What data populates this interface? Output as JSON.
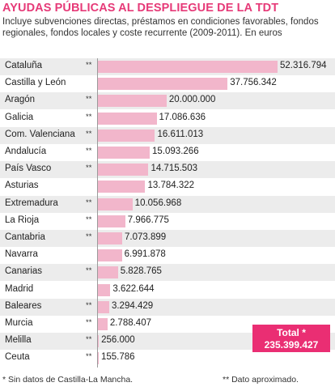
{
  "title": "AYUDAS PÚBLICAS AL DESPLIEGUE DE LA TDT",
  "subtitle": "Incluye subvenciones directas, préstamos en condiciones favorables, fondos regionales, fondos locales y coste recurrente (2009-2011). En euros",
  "colors": {
    "accent": "#e63a78",
    "bar": "#f2b6cb",
    "total_box": "#ea2e73",
    "row_shade": "#ececec"
  },
  "total": {
    "label": "Total *",
    "value": "235.399.427"
  },
  "footnotes": {
    "no_data": "* Sin datos de Castilla-La Mancha.",
    "approx": "** Dato aproximado."
  },
  "chart_data": {
    "type": "bar",
    "orientation": "horizontal",
    "title": "AYUDAS PÚBLICAS AL DESPLIEGUE DE LA TDT",
    "xlabel": "",
    "ylabel": "",
    "xlim": [
      0,
      52316794
    ],
    "grid": false,
    "legend": "none",
    "categories": [
      "Cataluña",
      "Castilla y León",
      "Aragón",
      "Galicia",
      "Com. Valenciana",
      "Andalucía",
      "País Vasco",
      "Asturias",
      "Extremadura",
      "La Rioja",
      "Cantabria",
      "Navarra",
      "Canarias",
      "Madrid",
      "Baleares",
      "Murcia",
      "Melilla",
      "Ceuta"
    ],
    "values": [
      52316794,
      37756342,
      20000000,
      17086636,
      16611013,
      15093266,
      14715503,
      13784322,
      10056968,
      7966775,
      7073899,
      6991878,
      5828765,
      3622644,
      3294429,
      2788407,
      256000,
      155786
    ],
    "value_labels": [
      "52.316.794",
      "37.756.342",
      "20.000.000",
      "17.086.636",
      "16.611.013",
      "15.093.266",
      "14.715.503",
      "13.784.322",
      "10.056.968",
      "7.966.775",
      "7.073.899",
      "6.991.878",
      "5.828.765",
      "3.622.644",
      "3.294.429",
      "2.788.407",
      "256.000",
      "155.786"
    ],
    "notes": [
      "**",
      "",
      "**",
      "**",
      "**",
      "**",
      "**",
      "",
      "**",
      "**",
      "**",
      "",
      "**",
      "",
      "**",
      "**",
      "**",
      "**"
    ]
  }
}
